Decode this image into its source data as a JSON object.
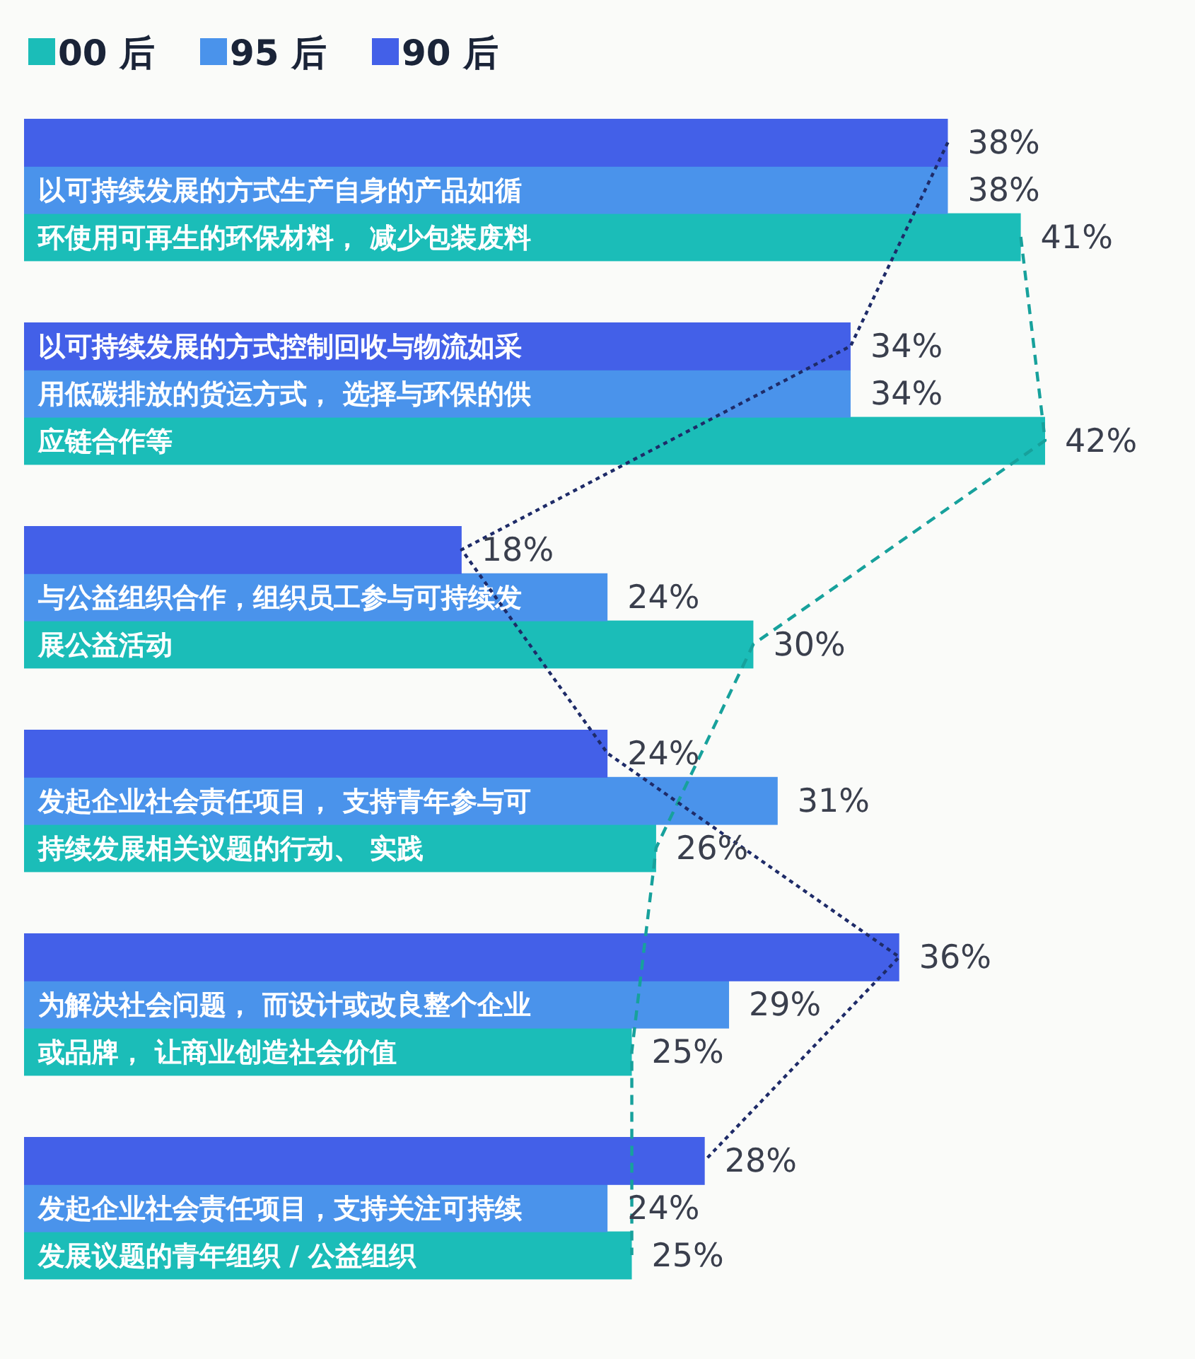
{
  "chart_data": {
    "type": "bar",
    "orientation": "horizontal",
    "data_labels": true,
    "legend": "top left",
    "categories": [
      "以可持续发展的方式生产自身的产品如循环使用可再生的环保材料， 减少包装废料",
      "以可持续发展的方式控制回收与物流如采用低碳排放的货运方式， 选择与环保的供应链合作等",
      "与公益组织合作，组织员工参与可持续发展公益活动",
      "发起企业社会责任项目， 支持青年参与可持续发展相关议题的行动、 实践",
      "为解决社会问题， 而设计或改良整个企业或品牌， 让商业创造社会价值",
      "发起企业社会责任项目，支持关注可持续发展议题的青年组织 / 公益组织"
    ],
    "series": [
      {
        "name": "00 后",
        "color": "#1bbdb8",
        "line_style": "dashed",
        "values": [
          41,
          42,
          30,
          26,
          25,
          25
        ],
        "value_labels": [
          "41%",
          "42%",
          "30%",
          "26%",
          "25%",
          "25%"
        ]
      },
      {
        "name": "95 后",
        "color": "#4a93eb",
        "values": [
          38,
          34,
          24,
          31,
          29,
          24
        ],
        "value_labels": [
          "38%",
          "34%",
          "24%",
          "31%",
          "29%",
          "24%"
        ]
      },
      {
        "name": "90 后",
        "color": "#4360e8",
        "line_style": "dotted",
        "values": [
          38,
          34,
          18,
          24,
          36,
          28
        ],
        "value_labels": [
          "38%",
          "34%",
          "18%",
          "24%",
          "36%",
          "28%"
        ]
      }
    ]
  }
}
